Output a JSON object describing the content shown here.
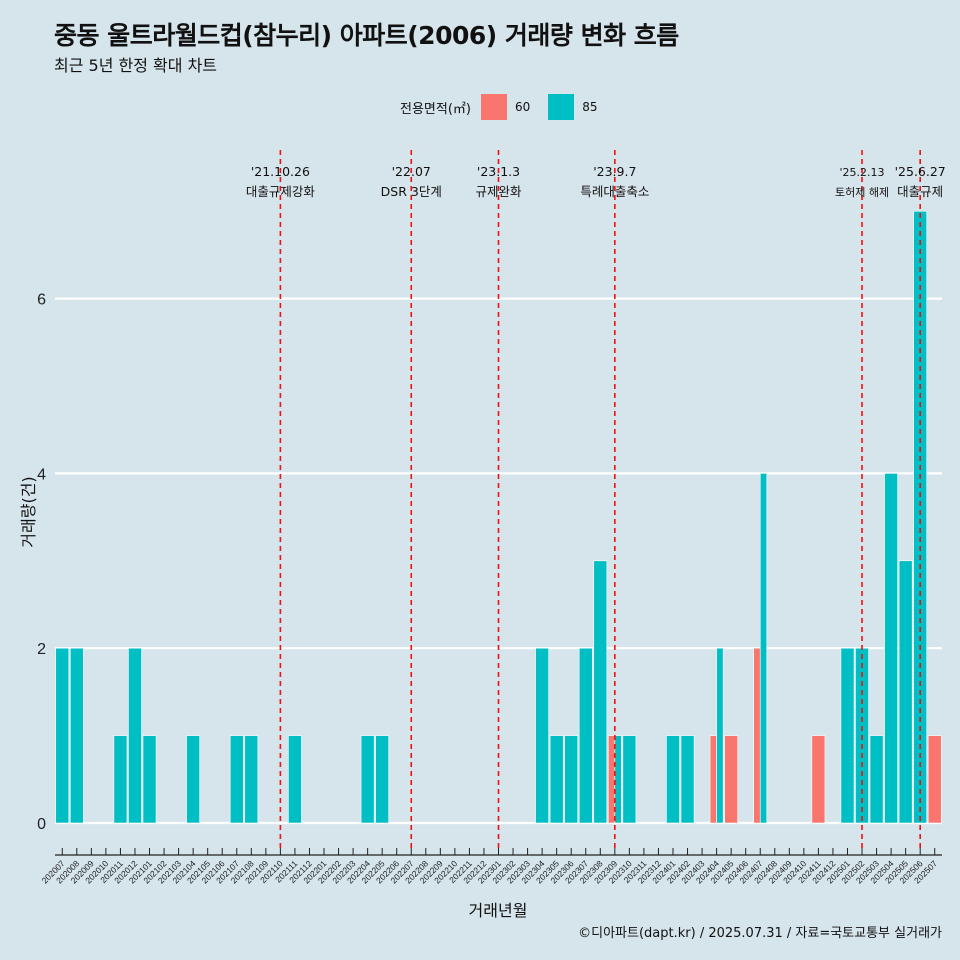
{
  "header": {
    "title": "중동 울트라월드컵(참누리) 아파트(2006) 거래량 변화 흐름",
    "subtitle": "최근 5년 한정 확대 차트"
  },
  "legend": {
    "title": "전용면적(㎡)",
    "items": [
      {
        "label": "60",
        "color": "#f8766d"
      },
      {
        "label": "85",
        "color": "#00bfc4"
      }
    ]
  },
  "caption": "©디아파트(dapt.kr) / 2025.07.31 / 자료=국토교통부 실거래가",
  "chart_data": {
    "type": "bar",
    "stacked": false,
    "dodge": true,
    "xlabel": "거래년월",
    "ylabel": "거래량(건)",
    "ylim": [
      -0.3,
      7.5
    ],
    "yticks": [
      0,
      2,
      4,
      6
    ],
    "categories": [
      "202007",
      "202008",
      "202009",
      "202010",
      "202011",
      "202012",
      "202101",
      "202102",
      "202103",
      "202104",
      "202105",
      "202106",
      "202107",
      "202108",
      "202109",
      "202110",
      "202111",
      "202112",
      "202201",
      "202202",
      "202203",
      "202204",
      "202205",
      "202206",
      "202207",
      "202208",
      "202209",
      "202210",
      "202211",
      "202212",
      "202301",
      "202302",
      "202303",
      "202304",
      "202305",
      "202306",
      "202307",
      "202308",
      "202309",
      "202310",
      "202311",
      "202312",
      "202401",
      "202402",
      "202403",
      "202404",
      "202405",
      "202406",
      "202407",
      "202408",
      "202409",
      "202410",
      "202411",
      "202412",
      "202501",
      "202502",
      "202503",
      "202504",
      "202505",
      "202506",
      "202507"
    ],
    "series": [
      {
        "name": "60",
        "color": "#f8766d",
        "values": [
          0,
          0,
          0,
          0,
          0,
          0,
          0,
          0,
          0,
          0,
          0,
          0,
          0,
          0,
          0,
          0,
          0,
          0,
          0,
          0,
          0,
          0,
          0,
          0,
          0,
          0,
          0,
          0,
          0,
          0,
          0,
          0,
          0,
          0,
          0,
          0,
          0,
          0,
          1,
          0,
          0,
          0,
          0,
          0,
          0,
          1,
          1,
          0,
          2,
          0,
          0,
          0,
          1,
          0,
          0,
          0,
          0,
          0,
          0,
          0,
          1
        ]
      },
      {
        "name": "85",
        "color": "#00bfc4",
        "values": [
          2,
          2,
          0,
          0,
          1,
          2,
          1,
          0,
          0,
          1,
          0,
          0,
          1,
          1,
          0,
          0,
          1,
          0,
          0,
          0,
          0,
          1,
          1,
          0,
          0,
          0,
          0,
          0,
          0,
          0,
          0,
          0,
          0,
          2,
          1,
          1,
          2,
          3,
          1,
          1,
          0,
          0,
          1,
          1,
          0,
          2,
          0,
          0,
          4,
          0,
          0,
          0,
          0,
          0,
          2,
          2,
          1,
          4,
          3,
          7,
          0
        ]
      }
    ],
    "events": [
      {
        "date_label": "'21.10.26",
        "text": "대출규제강화",
        "at": "202110"
      },
      {
        "date_label": "'22.07",
        "text": "DSR 3단계",
        "at": "202207"
      },
      {
        "date_label": "'23.1.3",
        "text": "규제완화",
        "at": "202301"
      },
      {
        "date_label": "'23.9.7",
        "text": "특례대출축소",
        "at": "202309"
      },
      {
        "date_label": "'25.2.13",
        "text": "토허제 해제",
        "at": "202502"
      },
      {
        "date_label": "'25.6.27",
        "text": "대출규제",
        "at": "202506"
      }
    ],
    "grid": true,
    "legend_position": "top"
  }
}
